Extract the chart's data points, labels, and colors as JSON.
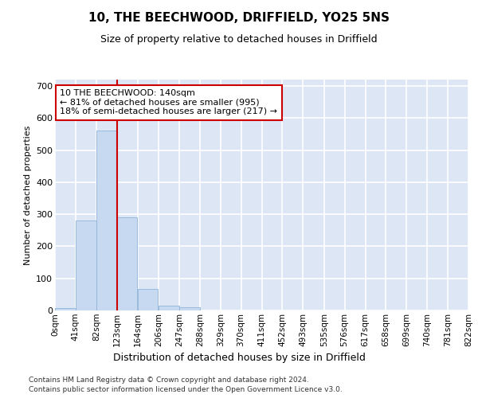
{
  "title1": "10, THE BEECHWOOD, DRIFFIELD, YO25 5NS",
  "title2": "Size of property relative to detached houses in Driffield",
  "xlabel": "Distribution of detached houses by size in Driffield",
  "ylabel": "Number of detached properties",
  "bar_color": "#c6d9f0",
  "bar_edge_color": "#8fb4d9",
  "background_color": "#dce6f5",
  "grid_color": "#ffffff",
  "bin_edges": [
    0,
    41,
    82,
    123,
    164,
    206,
    247,
    288,
    329,
    370,
    411,
    452,
    493,
    535,
    576,
    617,
    658,
    699,
    740,
    781,
    822
  ],
  "bin_labels": [
    "0sqm",
    "41sqm",
    "82sqm",
    "123sqm",
    "164sqm",
    "206sqm",
    "247sqm",
    "288sqm",
    "329sqm",
    "370sqm",
    "411sqm",
    "452sqm",
    "493sqm",
    "535sqm",
    "576sqm",
    "617sqm",
    "658sqm",
    "699sqm",
    "740sqm",
    "781sqm",
    "822sqm"
  ],
  "bar_heights": [
    8,
    280,
    560,
    290,
    68,
    15,
    10,
    0,
    0,
    0,
    0,
    0,
    0,
    0,
    0,
    0,
    0,
    0,
    0,
    0
  ],
  "ylim": [
    0,
    720
  ],
  "yticks": [
    0,
    100,
    200,
    300,
    400,
    500,
    600,
    700
  ],
  "property_line_x": 123,
  "property_line_color": "#cc0000",
  "annotation_line1": "10 THE BEECHWOOD: 140sqm",
  "annotation_line2": "← 81% of detached houses are smaller (995)",
  "annotation_line3": "18% of semi-detached houses are larger (217) →",
  "annotation_box_color": "#ffffff",
  "annotation_box_edge": "#cc0000",
  "footer1": "Contains HM Land Registry data © Crown copyright and database right 2024.",
  "footer2": "Contains public sector information licensed under the Open Government Licence v3.0."
}
